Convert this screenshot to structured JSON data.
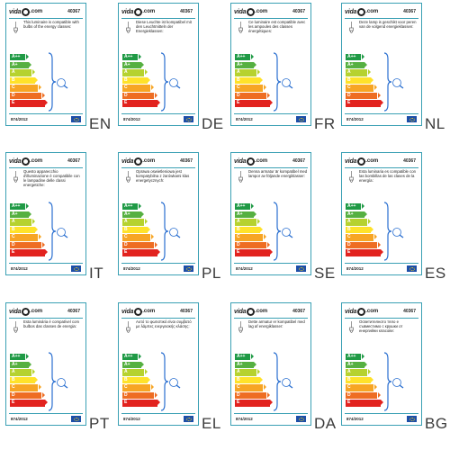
{
  "brand": {
    "logo_main": "vida",
    "logo_com": ".com"
  },
  "product_code": "40367",
  "regulation": "874/2012",
  "energy_classes": [
    {
      "label": "A++",
      "color": "#1f9a45"
    },
    {
      "label": "A+",
      "color": "#56b041"
    },
    {
      "label": "A",
      "color": "#b6d22f"
    },
    {
      "label": "B",
      "color": "#ffe22a"
    },
    {
      "label": "C",
      "color": "#f7a524"
    },
    {
      "label": "D",
      "color": "#ee6d23"
    },
    {
      "label": "E",
      "color": "#e2231f"
    }
  ],
  "border_color": "#3aa0b4",
  "cards": [
    {
      "lang": "EN",
      "text": "This luminaire is compatible with bulbs of the energy classes:"
    },
    {
      "lang": "DE",
      "text": "Diese Leuchte ist kompatibel mit den Leuchtmitteln der Energieklassen:"
    },
    {
      "lang": "FR",
      "text": "Ce luminaire est compatible avec les ampoules des classes énergétiques:"
    },
    {
      "lang": "NL",
      "text": "Deze lamp is geschikt voor peren van de volgend energieklassen:"
    },
    {
      "lang": "IT",
      "text": "Questo apparecchio d'illuminazione è compatibile con le lampadine delle classi energetiche:"
    },
    {
      "lang": "PL",
      "text": "Oprawa oswietleniowa jest kompatybilna z żarówkami klas energetycznych:"
    },
    {
      "lang": "SE",
      "text": "Denna armatur är kompatibel med lampor av följande energiklasser:"
    },
    {
      "lang": "ES",
      "text": "Esta luminaria es compatible con las bombillas de las clases de la energía:"
    },
    {
      "lang": "PT",
      "text": "Esta luminária é compatível com bulbos das classes de energia:"
    },
    {
      "lang": "EL",
      "text": "Αυτό το φωτιστικό είναι συμβατό με λάμπες ενεργειακής κλάσης:"
    },
    {
      "lang": "DA",
      "text": "Dette armatur er kompatibel med lag af energiklasser:"
    },
    {
      "lang": "BG",
      "text": "Осветителното тяло е съвместимо с крушки от енергийни класове:"
    }
  ]
}
